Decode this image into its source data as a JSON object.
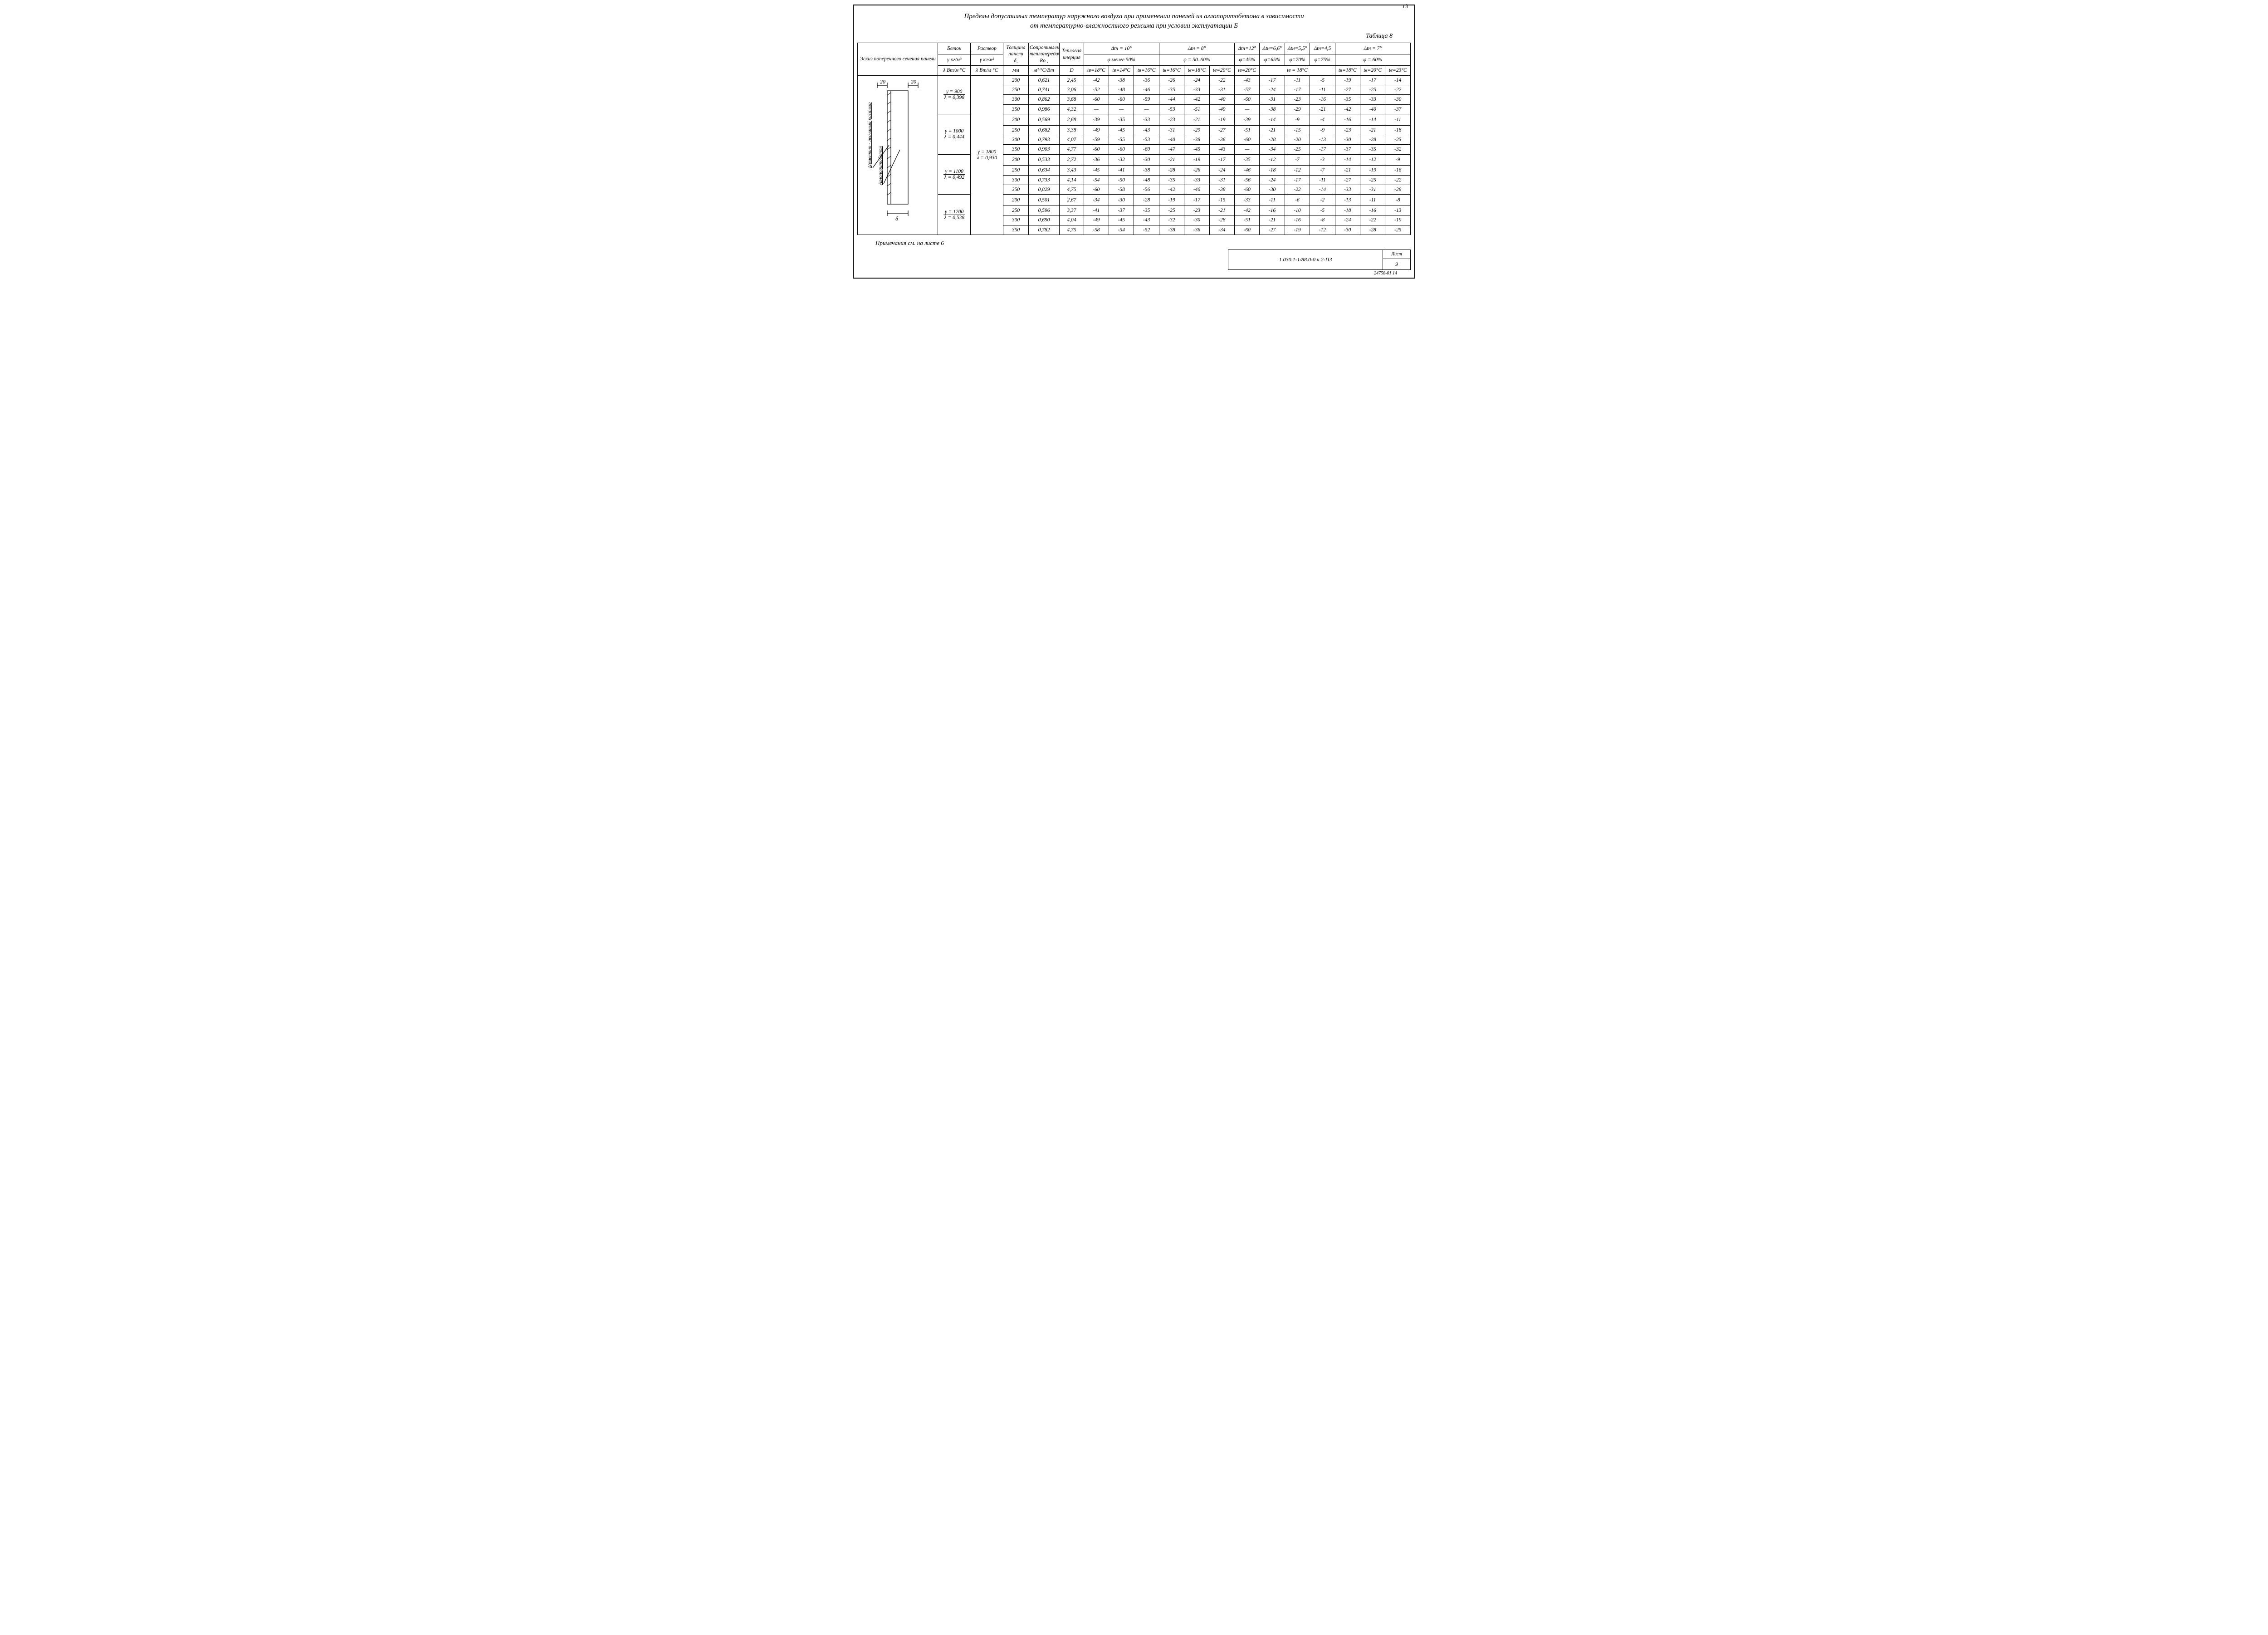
{
  "page_number_top": "13",
  "title_line1": "Пределы допустимых температур наружного воздуха при применении панелей из аглопоритобетона в зависимости",
  "title_line2": "от температурно-влажностного режима при условии эксплуатации Б",
  "table_label": "Таблица 8",
  "head": {
    "sketch": "Эскиз поперечного сечения панели",
    "concrete_top": "Бетон",
    "concrete_mid": "γ кг/м³",
    "concrete_bot": "λ Вт/м·°С",
    "mortar_top": "Раствор",
    "mortar_mid": "γ кг/м³",
    "mortar_bot": "λ Вт/м·°С",
    "thickness_top": "Толщина панели",
    "thickness_mid": "δ,",
    "thickness_bot": "мм",
    "resist_top": "Сопротивление теплопередаче",
    "resist_mid": "Ro ,",
    "resist_bot": "м²·°С/Вт",
    "inertia_top": "Тепловая инерция",
    "inertia_bot": "D",
    "g1_top": "Δtн = 10°",
    "g1_mid": "φ менее 50%",
    "g1_c1": "tв=18°С",
    "g1_c2": "tв=14°С",
    "g1_c3": "tв=16°С",
    "g2_top": "Δtн = 8°",
    "g2_mid": "φ = 50–60%",
    "g2_c1": "tв=16°С",
    "g2_c2": "tв=18°С",
    "g2_c3": "tв=20°С",
    "g3a_top": "Δtн=12°",
    "g3b_top": "Δtн=6,6°",
    "g3c_top": "Δtн=5,5°",
    "g3d_top": "Δtн=4,5",
    "g3a_mid": "φ=45%",
    "g3b_mid": "φ=65%",
    "g3c_mid": "φ=70%",
    "g3d_mid": "φ=75%",
    "g3a_bot": "tв=20°С",
    "g3_bcd_bot": "tв = 18°С",
    "g4_top": "Δtн = 7°",
    "g4_mid": "φ = 60%",
    "g4_c1": "tв=18°С",
    "g4_c2": "tв=20°С",
    "g4_c3": "tв=23°С"
  },
  "sketch": {
    "dim_top_left": "20",
    "dim_top_right": "20",
    "dim_bottom": "δ",
    "label_left": "Цементно - песчаный раствор",
    "label_right": "Аглопоритобетон"
  },
  "mortar": {
    "gamma": "γ = 1800",
    "lambda": "λ = 0,930"
  },
  "groups": [
    {
      "gamma": "γ = 900",
      "lambda": "λ = 0,398",
      "rows": [
        {
          "t": "200",
          "Ro": "0,621",
          "D": "2,45",
          "v": [
            "-42",
            "-38",
            "-36",
            "-26",
            "-24",
            "-22",
            "-43",
            "-17",
            "-11",
            "-5",
            "-19",
            "-17",
            "-14"
          ]
        },
        {
          "t": "250",
          "Ro": "0,741",
          "D": "3,06",
          "v": [
            "-52",
            "-48",
            "-46",
            "-35",
            "-33",
            "-31",
            "-57",
            "-24",
            "-17",
            "-11",
            "-27",
            "-25",
            "-22"
          ]
        },
        {
          "t": "300",
          "Ro": "0,862",
          "D": "3,68",
          "v": [
            "-60",
            "-60",
            "-59",
            "-44",
            "-42",
            "-40",
            "-60",
            "-31",
            "-23",
            "-16",
            "-35",
            "-33",
            "-30"
          ]
        },
        {
          "t": "350",
          "Ro": "0,986",
          "D": "4,32",
          "v": [
            "—",
            "—",
            "—",
            "-53",
            "-51",
            "-49",
            "—",
            "-38",
            "-29",
            "-21",
            "-42",
            "-40",
            "-37"
          ]
        }
      ]
    },
    {
      "gamma": "γ = 1000",
      "lambda": "λ = 0,444",
      "rows": [
        {
          "t": "200",
          "Ro": "0,569",
          "D": "2,68",
          "v": [
            "-39",
            "-35",
            "-33",
            "-23",
            "-21",
            "-19",
            "-39",
            "-14",
            "-9",
            "-4",
            "-16",
            "-14",
            "-11"
          ]
        },
        {
          "t": "250",
          "Ro": "0,682",
          "D": "3,38",
          "v": [
            "-49",
            "-45",
            "-43",
            "-31",
            "-29",
            "-27",
            "-51",
            "-21",
            "-15",
            "-9",
            "-23",
            "-21",
            "-18"
          ]
        },
        {
          "t": "300",
          "Ro": "0,793",
          "D": "4,07",
          "v": [
            "-59",
            "-55",
            "-53",
            "-40",
            "-38",
            "-36",
            "-60",
            "-28",
            "-20",
            "-13",
            "-30",
            "-28",
            "-25"
          ]
        },
        {
          "t": "350",
          "Ro": "0,903",
          "D": "4,77",
          "v": [
            "-60",
            "-60",
            "-60",
            "-47",
            "-45",
            "-43",
            "—",
            "-34",
            "-25",
            "-17",
            "-37",
            "-35",
            "-32"
          ]
        }
      ]
    },
    {
      "gamma": "γ = 1100",
      "lambda": "λ = 0,492",
      "rows": [
        {
          "t": "200",
          "Ro": "0,533",
          "D": "2,72",
          "v": [
            "-36",
            "-32",
            "-30",
            "-21",
            "-19",
            "-17",
            "-35",
            "-12",
            "-7",
            "-3",
            "-14",
            "-12",
            "-9"
          ]
        },
        {
          "t": "250",
          "Ro": "0,634",
          "D": "3,43",
          "v": [
            "-45",
            "-41",
            "-38",
            "-28",
            "-26",
            "-24",
            "-46",
            "-18",
            "-12",
            "-7",
            "-21",
            "-19",
            "-16"
          ]
        },
        {
          "t": "300",
          "Ro": "0,733",
          "D": "4,14",
          "v": [
            "-54",
            "-50",
            "-48",
            "-35",
            "-33",
            "-31",
            "-56",
            "-24",
            "-17",
            "-11",
            "-27",
            "-25",
            "-22"
          ]
        },
        {
          "t": "350",
          "Ro": "0,829",
          "D": "4,75",
          "v": [
            "-60",
            "-58",
            "-56",
            "-42",
            "-40",
            "-38",
            "-60",
            "-30",
            "-22",
            "-14",
            "-33",
            "-31",
            "-28"
          ]
        }
      ]
    },
    {
      "gamma": "γ = 1200",
      "lambda": "λ = 0,538",
      "rows": [
        {
          "t": "200",
          "Ro": "0,501",
          "D": "2,67",
          "v": [
            "-34",
            "-30",
            "-28",
            "-19",
            "-17",
            "-15",
            "-33",
            "-11",
            "-6",
            "-2",
            "-13",
            "-11",
            "-8"
          ]
        },
        {
          "t": "250",
          "Ro": "0,596",
          "D": "3,37",
          "v": [
            "-41",
            "-37",
            "-35",
            "-25",
            "-23",
            "-21",
            "-42",
            "-16",
            "-10",
            "-5",
            "-18",
            "-16",
            "-13"
          ]
        },
        {
          "t": "300",
          "Ro": "0,690",
          "D": "4,04",
          "v": [
            "-49",
            "-45",
            "-43",
            "-32",
            "-30",
            "-28",
            "-51",
            "-21",
            "-16",
            "-8",
            "-24",
            "-22",
            "-19"
          ]
        },
        {
          "t": "350",
          "Ro": "0,782",
          "D": "4,75",
          "v": [
            "-58",
            "-54",
            "-52",
            "-38",
            "-36",
            "-34",
            "-60",
            "-27",
            "-19",
            "-12",
            "-30",
            "-28",
            "-25"
          ]
        }
      ]
    }
  ],
  "footnote": "Примечания см. на листе 6",
  "stamp_code": "1.030.1-1/88.0-0.ч.2-ПЗ",
  "stamp_word": "Лист",
  "stamp_page": "9",
  "form_number": "24758-01  14",
  "colors": {
    "ink": "#000000",
    "paper": "#ffffff"
  }
}
